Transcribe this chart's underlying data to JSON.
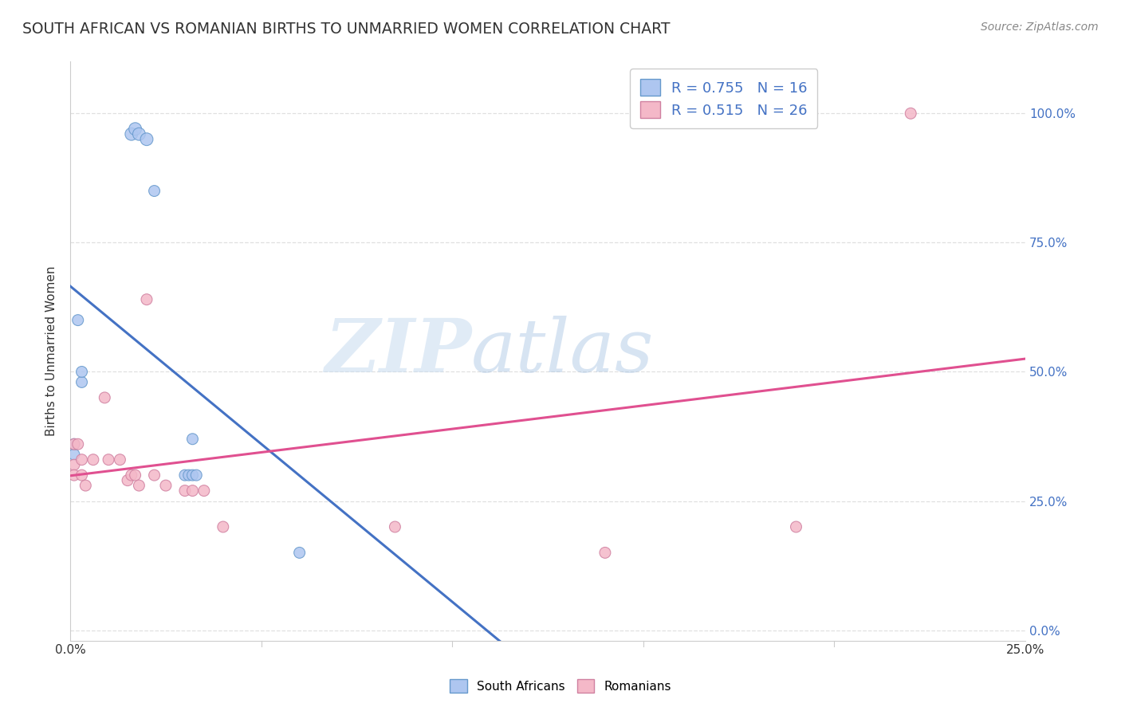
{
  "title": "SOUTH AFRICAN VS ROMANIAN BIRTHS TO UNMARRIED WOMEN CORRELATION CHART",
  "source": "Source: ZipAtlas.com",
  "ylabel": "Births to Unmarried Women",
  "xlim": [
    0.0,
    0.25
  ],
  "ylim": [
    -0.02,
    1.1
  ],
  "ytick_values": [
    0.0,
    0.25,
    0.5,
    0.75,
    1.0
  ],
  "xtick_values": [
    0.0,
    0.05,
    0.1,
    0.15,
    0.2,
    0.25
  ],
  "watermark_zip": "ZIP",
  "watermark_atlas": "atlas",
  "south_africans": {
    "color": "#aec6f0",
    "edge_color": "#6699cc",
    "line_color": "#4472c4",
    "x": [
      0.001,
      0.001,
      0.002,
      0.016,
      0.017,
      0.018,
      0.02,
      0.022,
      0.003,
      0.003,
      0.03,
      0.031,
      0.032,
      0.032,
      0.033,
      0.06
    ],
    "y": [
      0.34,
      0.36,
      0.6,
      0.96,
      0.97,
      0.96,
      0.95,
      0.85,
      0.48,
      0.5,
      0.3,
      0.3,
      0.37,
      0.3,
      0.3,
      0.15
    ],
    "sizes": [
      100,
      100,
      100,
      130,
      130,
      130,
      130,
      100,
      100,
      100,
      100,
      100,
      100,
      100,
      100,
      100
    ]
  },
  "romanians": {
    "color": "#f4b8c8",
    "edge_color": "#d080a0",
    "line_color": "#e05090",
    "x": [
      0.001,
      0.001,
      0.001,
      0.002,
      0.003,
      0.003,
      0.004,
      0.006,
      0.009,
      0.01,
      0.013,
      0.015,
      0.016,
      0.017,
      0.018,
      0.02,
      0.022,
      0.025,
      0.03,
      0.032,
      0.035,
      0.04,
      0.085,
      0.14,
      0.19,
      0.22
    ],
    "y": [
      0.36,
      0.32,
      0.3,
      0.36,
      0.33,
      0.3,
      0.28,
      0.33,
      0.45,
      0.33,
      0.33,
      0.29,
      0.3,
      0.3,
      0.28,
      0.64,
      0.3,
      0.28,
      0.27,
      0.27,
      0.27,
      0.2,
      0.2,
      0.15,
      0.2,
      1.0
    ],
    "sizes": [
      100,
      100,
      100,
      100,
      100,
      100,
      100,
      100,
      100,
      100,
      100,
      100,
      100,
      100,
      100,
      100,
      100,
      100,
      100,
      100,
      100,
      100,
      100,
      100,
      100,
      100
    ]
  },
  "background_color": "#ffffff",
  "grid_color": "#e0e0e0",
  "title_fontsize": 13.5,
  "label_fontsize": 11,
  "tick_fontsize": 11,
  "legend_fontsize": 13,
  "source_fontsize": 10,
  "right_tick_color": "#4472c4",
  "legend_R_N": [
    {
      "R": "0.755",
      "N": "16",
      "color": "#aec6f0",
      "edge": "#6699cc"
    },
    {
      "R": "0.515",
      "N": "26",
      "color": "#f4b8c8",
      "edge": "#d080a0"
    }
  ]
}
